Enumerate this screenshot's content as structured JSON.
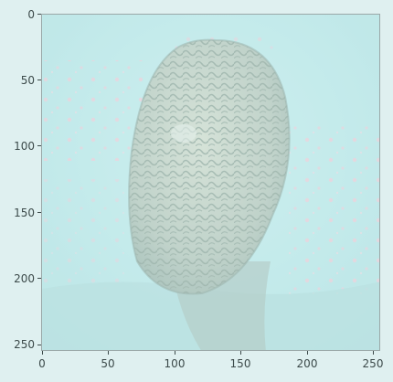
{
  "image": {
    "description_label": "underwater photo of brain coral, cyan tinted",
    "colors": {
      "water": "#bfe9ea",
      "coral_light": "#cfd8cc",
      "coral_dark": "#8fa49b",
      "pink_speckle": "#f1c9d6",
      "frame": "#9aa8a8"
    }
  },
  "axes": {
    "x_ticks": [
      "0",
      "50",
      "100",
      "150",
      "200",
      "250"
    ],
    "y_ticks": [
      "0",
      "50",
      "100",
      "150",
      "200",
      "250"
    ]
  }
}
